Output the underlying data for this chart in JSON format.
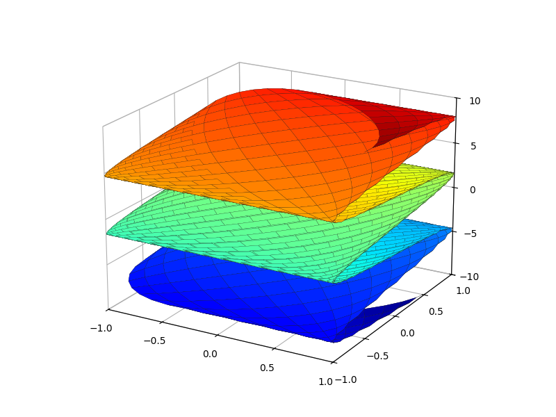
{
  "u_range": [
    -5,
    5
  ],
  "v_range": [
    -5,
    5
  ],
  "n_points": 60,
  "colormap": "jet",
  "xlabel_range": [
    -1.0,
    1.0
  ],
  "ylabel_range": [
    -1.0,
    1.0
  ],
  "zlabel_range": [
    -10,
    10
  ],
  "figsize": [
    8.0,
    6.0
  ],
  "dpi": 100,
  "elev": 20,
  "azim": -60,
  "background_color": "#ffffff",
  "alpha": 1.0,
  "linewidth": 0.15,
  "rstride": 1,
  "cstride": 1,
  "edge_color": "#222222"
}
